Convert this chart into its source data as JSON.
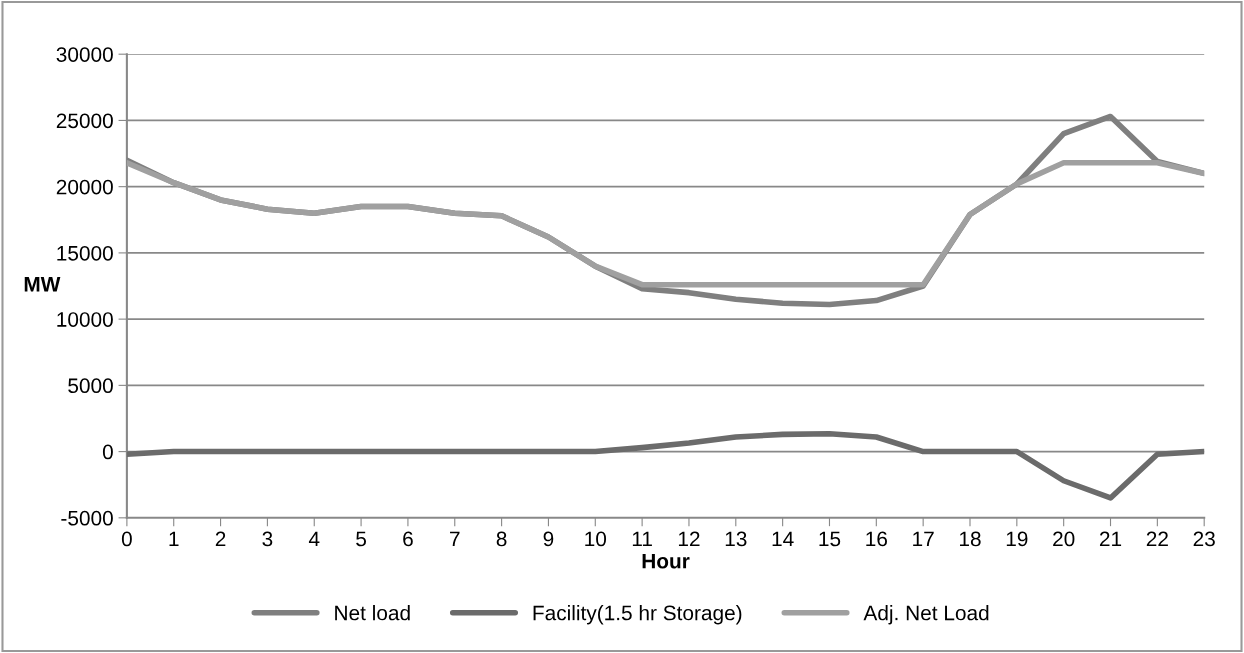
{
  "chart_data": {
    "type": "line",
    "xlabel": "Hour",
    "ylabel": "MW",
    "x": [
      0,
      1,
      2,
      3,
      4,
      5,
      6,
      7,
      8,
      9,
      10,
      11,
      12,
      13,
      14,
      15,
      16,
      17,
      18,
      19,
      20,
      21,
      22,
      23
    ],
    "series": [
      {
        "name": "Net load",
        "color": "#7f7f7f",
        "values": [
          22000,
          20300,
          19000,
          18300,
          18000,
          18500,
          18500,
          18000,
          17800,
          16200,
          14000,
          12300,
          12000,
          11500,
          11200,
          11100,
          11400,
          12500,
          17900,
          20200,
          24000,
          25300,
          21900,
          21000
        ]
      },
      {
        "name": "Facility(1.5 hr Storage)",
        "color": "#6b6b6b",
        "values": [
          -200,
          0,
          0,
          0,
          0,
          0,
          0,
          0,
          0,
          0,
          0,
          300,
          650,
          1100,
          1300,
          1350,
          1100,
          0,
          0,
          0,
          -2200,
          -3500,
          -200,
          0
        ]
      },
      {
        "name": "Adj. Net Load",
        "color": "#a0a0a0",
        "values": [
          21800,
          20300,
          19000,
          18300,
          18000,
          18500,
          18500,
          18000,
          17800,
          16200,
          14000,
          12600,
          12600,
          12600,
          12600,
          12600,
          12600,
          12600,
          17900,
          20200,
          21800,
          21800,
          21800,
          21000
        ]
      }
    ],
    "xlim": [
      0,
      23
    ],
    "xticks": [
      0,
      1,
      2,
      3,
      4,
      5,
      6,
      7,
      8,
      9,
      10,
      11,
      12,
      13,
      14,
      15,
      16,
      17,
      18,
      19,
      20,
      21,
      22,
      23
    ],
    "ylim": [
      -5000,
      30000
    ],
    "yticks": [
      -5000,
      0,
      5000,
      10000,
      15000,
      20000,
      25000,
      30000
    ],
    "grid": "y",
    "legend": "bottom",
    "marker": "none",
    "line_style": "solid"
  }
}
